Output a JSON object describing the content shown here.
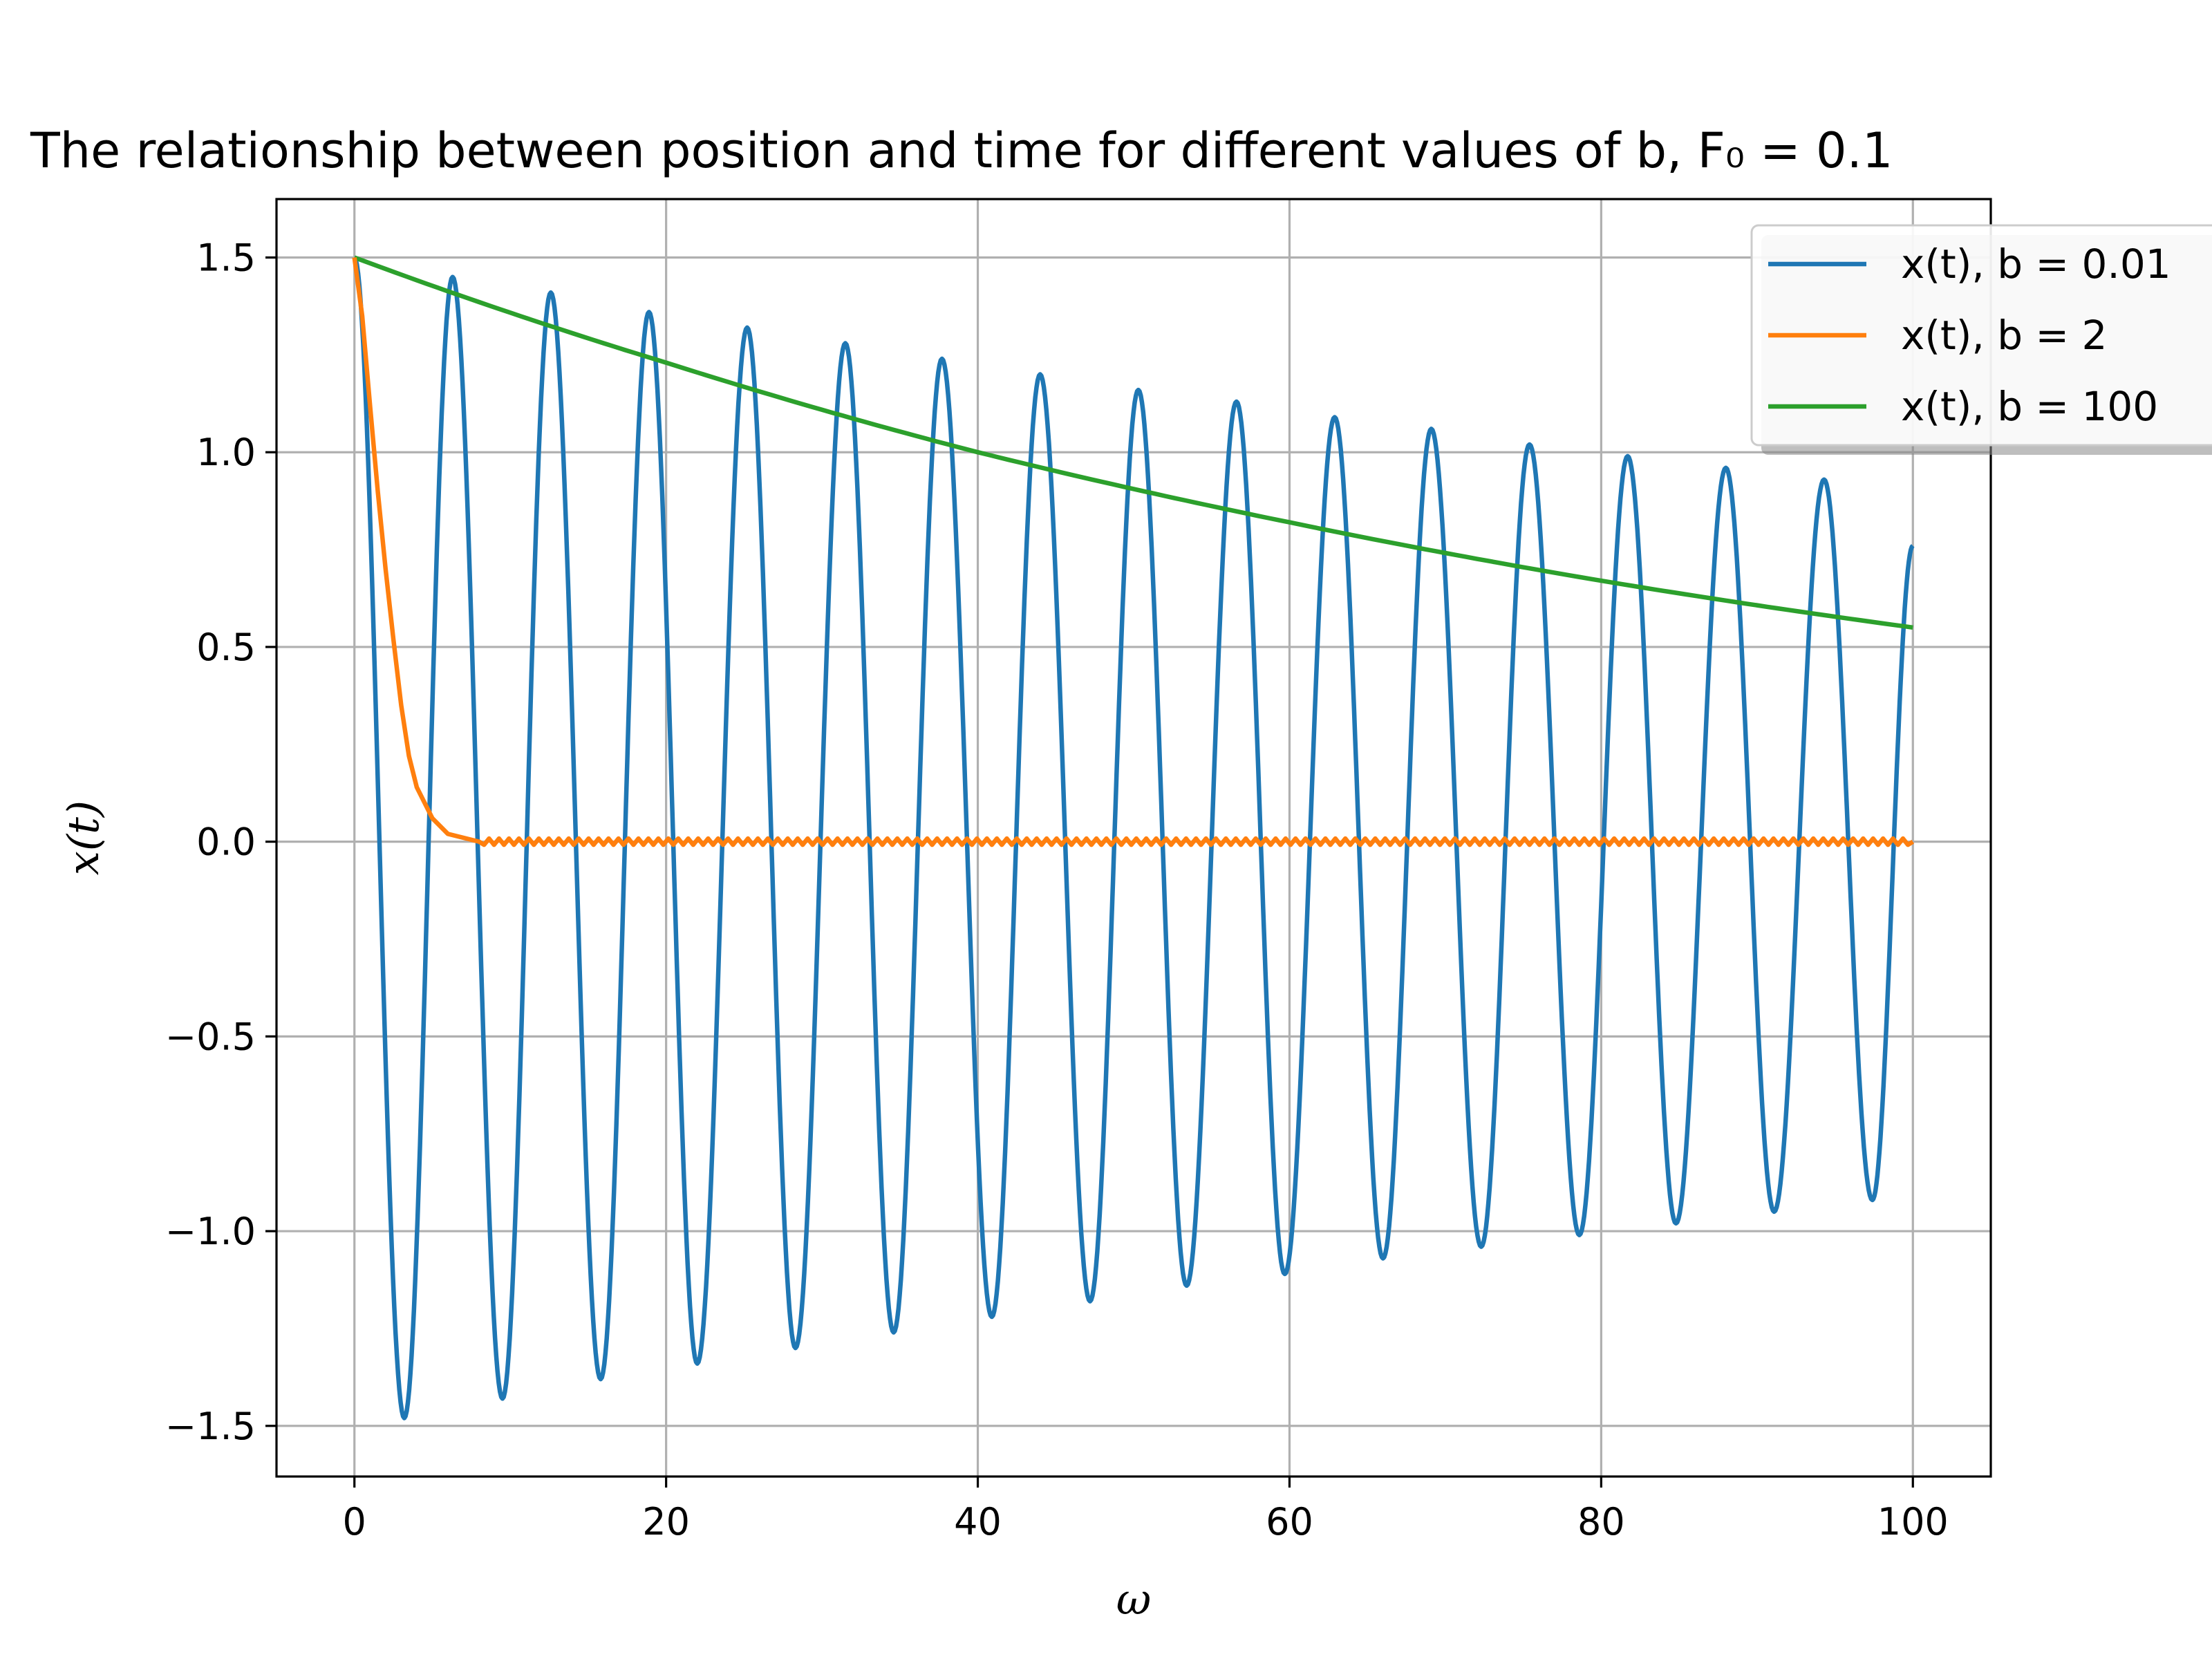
{
  "chart_data": {
    "type": "line",
    "title": "The relationship between position and time for different values of b, F₀ = 0.1",
    "xlabel": "ω",
    "ylabel": "x(t)",
    "xlim": [
      -5,
      105
    ],
    "ylim": [
      -1.63,
      1.65
    ],
    "xticks": [
      0,
      20,
      40,
      60,
      80,
      100
    ],
    "xtick_labels": [
      "0",
      "20",
      "40",
      "60",
      "80",
      "100"
    ],
    "yticks": [
      -1.5,
      -1.0,
      -0.5,
      0.0,
      0.5,
      1.0,
      1.5
    ],
    "ytick_labels": [
      "−1.5",
      "−1.0",
      "−0.5",
      "0.0",
      "0.5",
      "1.0",
      "1.5"
    ],
    "grid": true,
    "legend_position": "top-right",
    "series": [
      {
        "name": "x(t), b = 0.01",
        "color": "#1f77b4",
        "peaks": [
          {
            "x": 0.0,
            "y": 1.5
          },
          {
            "x": 3.2,
            "y": -1.48
          },
          {
            "x": 6.3,
            "y": 1.45
          },
          {
            "x": 9.5,
            "y": -1.43
          },
          {
            "x": 12.6,
            "y": 1.41
          },
          {
            "x": 15.8,
            "y": -1.38
          },
          {
            "x": 18.9,
            "y": 1.36
          },
          {
            "x": 22.0,
            "y": -1.34
          },
          {
            "x": 25.2,
            "y": 1.32
          },
          {
            "x": 28.3,
            "y": -1.3
          },
          {
            "x": 31.5,
            "y": 1.28
          },
          {
            "x": 34.6,
            "y": -1.26
          },
          {
            "x": 37.7,
            "y": 1.24
          },
          {
            "x": 40.9,
            "y": -1.22
          },
          {
            "x": 44.0,
            "y": 1.2
          },
          {
            "x": 47.2,
            "y": -1.18
          },
          {
            "x": 50.3,
            "y": 1.16
          },
          {
            "x": 53.4,
            "y": -1.14
          },
          {
            "x": 56.6,
            "y": 1.13
          },
          {
            "x": 59.7,
            "y": -1.11
          },
          {
            "x": 62.9,
            "y": 1.09
          },
          {
            "x": 66.0,
            "y": -1.07
          },
          {
            "x": 69.1,
            "y": 1.06
          },
          {
            "x": 72.3,
            "y": -1.04
          },
          {
            "x": 75.4,
            "y": 1.02
          },
          {
            "x": 78.6,
            "y": -1.01
          },
          {
            "x": 81.7,
            "y": 0.99
          },
          {
            "x": 84.8,
            "y": -0.98
          },
          {
            "x": 88.0,
            "y": 0.96
          },
          {
            "x": 91.1,
            "y": -0.95
          },
          {
            "x": 94.3,
            "y": 0.93
          },
          {
            "x": 97.4,
            "y": -0.92
          },
          {
            "x": 100.0,
            "y": 0.76
          }
        ]
      },
      {
        "name": "x(t), b = 2",
        "color": "#ff7f0e",
        "points": [
          {
            "x": 0.0,
            "y": 1.5
          },
          {
            "x": 0.5,
            "y": 1.35
          },
          {
            "x": 1.0,
            "y": 1.12
          },
          {
            "x": 1.5,
            "y": 0.9
          },
          {
            "x": 2.0,
            "y": 0.7
          },
          {
            "x": 2.5,
            "y": 0.52
          },
          {
            "x": 3.0,
            "y": 0.35
          },
          {
            "x": 3.5,
            "y": 0.22
          },
          {
            "x": 4.0,
            "y": 0.14
          },
          {
            "x": 5.0,
            "y": 0.06
          },
          {
            "x": 6.0,
            "y": 0.02
          },
          {
            "x": 8.0,
            "y": 0.0
          },
          {
            "x": 100.0,
            "y": 0.0
          }
        ]
      },
      {
        "name": "x(t), b = 100",
        "color": "#2ca02c",
        "points": [
          {
            "x": 0,
            "y": 1.5
          },
          {
            "x": 20,
            "y": 1.23
          },
          {
            "x": 40,
            "y": 1.0
          },
          {
            "x": 60,
            "y": 0.82
          },
          {
            "x": 80,
            "y": 0.67
          },
          {
            "x": 100,
            "y": 0.55
          }
        ]
      }
    ]
  }
}
